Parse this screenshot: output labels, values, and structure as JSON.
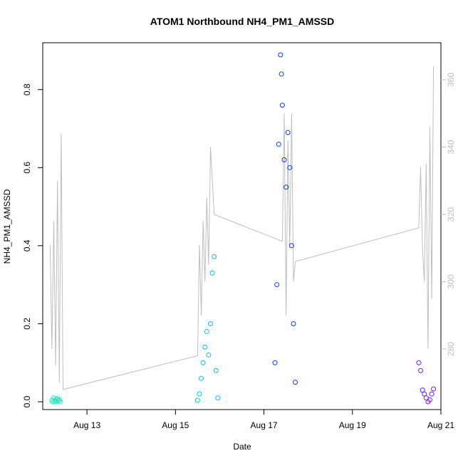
{
  "chart_data": {
    "type": "scatter",
    "title": "ATOM1 Northbound NH4_PM1_AMSSD",
    "xlabel": "Date",
    "ylabel": "NH4_PM1_AMSSD",
    "x_axis": {
      "unit": "date",
      "range": [
        "2016-08-12T00:00",
        "2016-08-21T00:00"
      ],
      "ticks": [
        {
          "value": "2016-08-13T00:00",
          "label": "Aug 13"
        },
        {
          "value": "2016-08-15T00:00",
          "label": "Aug 15"
        },
        {
          "value": "2016-08-17T00:00",
          "label": "Aug 17"
        },
        {
          "value": "2016-08-19T00:00",
          "label": "Aug 19"
        },
        {
          "value": "2016-08-21T00:00",
          "label": "Aug 21"
        }
      ]
    },
    "y_axis": {
      "range": [
        -0.02,
        0.92
      ],
      "ticks": [
        0.0,
        0.2,
        0.4,
        0.6,
        0.8
      ],
      "tick_labels": [
        "0.0",
        "0.2",
        "0.4",
        "0.6",
        "0.8"
      ]
    },
    "y2_axis": {
      "range": [
        262,
        371
      ],
      "ticks": [
        280,
        300,
        320,
        340,
        360
      ],
      "tick_labels": [
        "280",
        "300",
        "320",
        "340",
        "360"
      ],
      "color": "#bebebe"
    },
    "grid": false,
    "series": [
      {
        "style": "points",
        "color": "#1de9b6",
        "x": [
          "2016-08-12T05:00",
          "2016-08-12T05:30",
          "2016-08-12T06:00",
          "2016-08-12T06:30",
          "2016-08-12T07:00",
          "2016-08-12T07:30",
          "2016-08-12T08:00",
          "2016-08-12T08:30",
          "2016-08-12T09:00",
          "2016-08-12T09:30"
        ],
        "y": [
          0.004,
          0.0,
          0.01,
          0.002,
          0.006,
          0.001,
          0.008,
          0.003,
          0.005,
          0.0
        ]
      },
      {
        "style": "points",
        "color": "#00c3ff",
        "x": [
          "2016-08-15T12:00",
          "2016-08-15T13:00",
          "2016-08-15T14:00",
          "2016-08-15T15:00",
          "2016-08-15T16:00",
          "2016-08-15T17:00",
          "2016-08-15T18:00",
          "2016-08-15T19:00",
          "2016-08-15T20:00",
          "2016-08-15T21:00",
          "2016-08-15T22:00",
          "2016-08-15T23:00"
        ],
        "y": [
          0.004,
          0.02,
          0.06,
          0.1,
          0.14,
          0.18,
          0.12,
          0.2,
          0.33,
          0.372,
          0.08,
          0.01
        ]
      },
      {
        "style": "points",
        "color": "#0a3cff",
        "x": [
          "2016-08-17T06:00",
          "2016-08-17T07:00",
          "2016-08-17T08:00",
          "2016-08-17T09:00",
          "2016-08-17T09:30",
          "2016-08-17T10:00",
          "2016-08-17T11:00",
          "2016-08-17T12:00",
          "2016-08-17T13:00",
          "2016-08-17T14:00",
          "2016-08-17T15:00",
          "2016-08-17T16:00",
          "2016-08-17T17:00"
        ],
        "y": [
          0.1,
          0.3,
          0.66,
          0.889,
          0.84,
          0.76,
          0.62,
          0.55,
          0.69,
          0.6,
          0.4,
          0.2,
          0.05
        ]
      },
      {
        "style": "points",
        "color": "#6a1bff",
        "x": [
          "2016-08-20T12:00",
          "2016-08-20T13:00",
          "2016-08-20T14:00",
          "2016-08-20T15:00",
          "2016-08-20T16:00",
          "2016-08-20T17:00",
          "2016-08-20T18:00",
          "2016-08-20T19:00",
          "2016-08-20T20:00"
        ],
        "y": [
          0.1,
          0.08,
          0.03,
          0.02,
          0.01,
          0.0,
          0.005,
          0.02,
          0.033
        ]
      },
      {
        "style": "line",
        "axis": "right",
        "color": "#bebebe",
        "x": [
          "2016-08-12T04:00",
          "2016-08-12T05:00",
          "2016-08-12T06:00",
          "2016-08-12T07:00",
          "2016-08-12T08:00",
          "2016-08-12T09:00",
          "2016-08-12T10:00",
          "2016-08-12T11:00",
          "2016-08-15T12:00",
          "2016-08-15T13:00",
          "2016-08-15T14:00",
          "2016-08-15T15:00",
          "2016-08-15T16:00",
          "2016-08-15T17:00",
          "2016-08-15T18:00",
          "2016-08-15T19:00",
          "2016-08-15T20:00",
          "2016-08-15T21:00",
          "2016-08-17T10:00",
          "2016-08-17T11:00",
          "2016-08-17T12:00",
          "2016-08-17T13:00",
          "2016-08-17T14:00",
          "2016-08-17T15:00",
          "2016-08-17T16:00",
          "2016-08-17T17:00",
          "2016-08-20T12:00",
          "2016-08-20T13:00",
          "2016-08-20T14:00",
          "2016-08-20T15:00",
          "2016-08-20T16:00",
          "2016-08-20T17:00",
          "2016-08-20T18:00",
          "2016-08-20T19:00",
          "2016-08-20T20:00"
        ],
        "y": [
          311,
          280,
          318,
          275,
          330,
          270,
          344,
          268,
          278,
          311,
          290,
          318,
          300,
          325,
          305,
          340,
          330,
          320,
          312,
          350,
          290,
          342,
          310,
          350,
          300,
          306,
          316,
          334,
          310,
          300,
          335,
          280,
          346,
          295,
          364
        ]
      }
    ]
  }
}
